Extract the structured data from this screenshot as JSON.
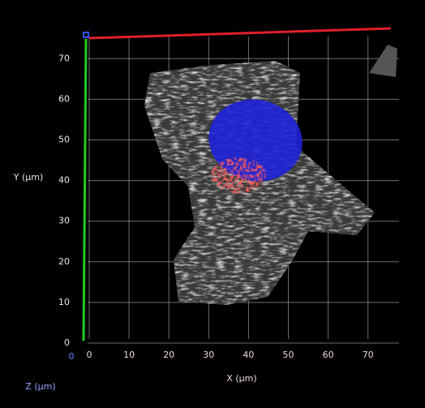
{
  "x_axis": {
    "label": "X (µm)",
    "ticks": [
      0,
      10,
      20,
      30,
      40,
      50,
      60,
      70
    ]
  },
  "y_axis": {
    "label": "Y (µm)",
    "ticks": [
      0,
      10,
      20,
      30,
      40,
      50,
      60,
      70
    ]
  },
  "z_axis": {
    "label": "Z (µm)",
    "ticks": [
      0
    ]
  }
}
